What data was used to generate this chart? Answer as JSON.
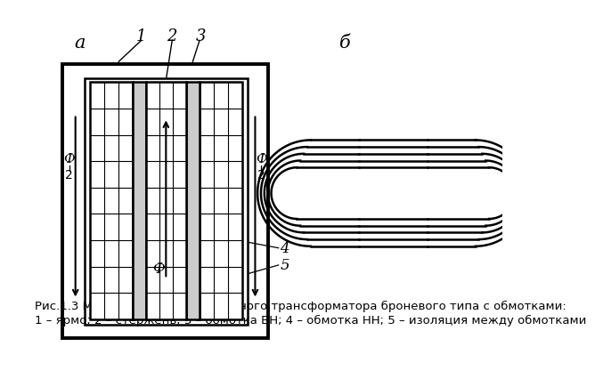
{
  "bg_color": "#ffffff",
  "line_color": "#000000",
  "fig_width": 7.2,
  "fig_height": 5.4,
  "caption_line1": "Рис.1.3 Магнитопровод однофазного трансформатора броневого типа с обмотками:",
  "caption_line2": "1 – ярмо; 2 – стержень; 3 – обмотка ВН; 4 – обмотка НН; 5 – изоляция между обмотками",
  "label_a": "а",
  "label_b": "б",
  "label_1": "1",
  "label_2": "2",
  "label_3": "3",
  "label_phi_center": "Ф",
  "label_4": "4",
  "label_5": "5"
}
